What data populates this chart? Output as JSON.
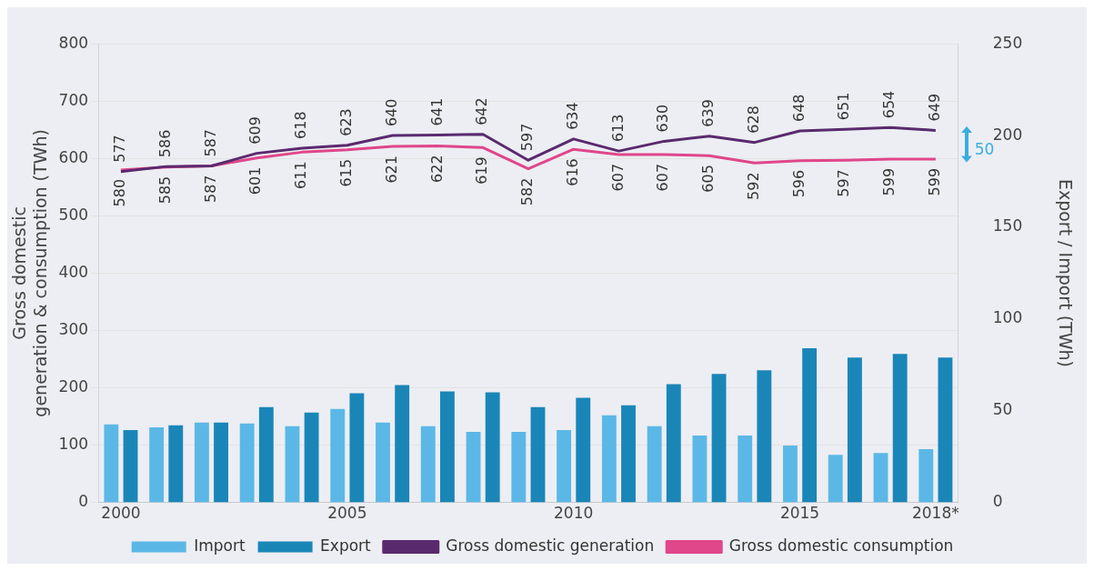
{
  "chart_data": {
    "type": "bar",
    "categories": [
      "2000",
      null,
      null,
      null,
      null,
      "2005",
      null,
      null,
      null,
      null,
      "2010",
      null,
      null,
      null,
      null,
      "2015",
      null,
      null,
      "2018*"
    ],
    "ylabel": "Gross domestic\ngeneration & consumption (TWh)",
    "y2label": "Export / Import (TWh)",
    "ylim": [
      0,
      800
    ],
    "yticks": [
      0,
      100,
      200,
      300,
      400,
      500,
      600,
      700,
      800
    ],
    "y2lim": [
      0,
      250
    ],
    "y2ticks": [
      0,
      50,
      100,
      150,
      200,
      250
    ],
    "grid": "y",
    "legend": "bottom",
    "annotations": [
      "50"
    ],
    "series": [
      {
        "name": "Import",
        "axis": "y2",
        "color": "#5bb8e6",
        "values": [
          42.5,
          41,
          43.5,
          43,
          41.5,
          51,
          43.5,
          41.5,
          38.5,
          38.5,
          39.5,
          47.5,
          41.5,
          36.5,
          36.5,
          31,
          26,
          27,
          29
        ]
      },
      {
        "name": "Export",
        "axis": "y2",
        "color": "#1a86b8",
        "values": [
          39.5,
          42,
          43.5,
          52,
          49,
          59.5,
          64,
          60.5,
          60,
          52,
          57,
          53,
          64.5,
          70,
          72,
          84,
          79,
          81,
          79
        ]
      },
      {
        "name": "Gross domestic generation",
        "type": "line",
        "color": "#5a2a6e",
        "values": [
          577,
          586,
          587,
          609,
          618,
          623,
          640,
          641,
          642,
          597,
          634,
          613,
          630,
          639,
          628,
          648,
          651,
          654,
          649
        ],
        "value_labels": [
          "577",
          "586",
          "587",
          "609",
          "618",
          "623",
          "640",
          "641",
          "642",
          "597",
          "634",
          "613",
          "630",
          "639",
          "628",
          "648",
          "651",
          "654",
          "649"
        ]
      },
      {
        "name": "Gross domestic consumption",
        "type": "line",
        "color": "#e0468a",
        "values": [
          580,
          585,
          587,
          601,
          611,
          615,
          621,
          622,
          619,
          582,
          616,
          607,
          607,
          605,
          592,
          596,
          597,
          599,
          599
        ],
        "value_labels": [
          "580",
          "585",
          "587",
          "601",
          "611",
          "615",
          "621",
          "622",
          "619",
          "582",
          "616",
          "607",
          "607",
          "605",
          "592",
          "596",
          "597",
          "599",
          "599"
        ]
      }
    ]
  }
}
